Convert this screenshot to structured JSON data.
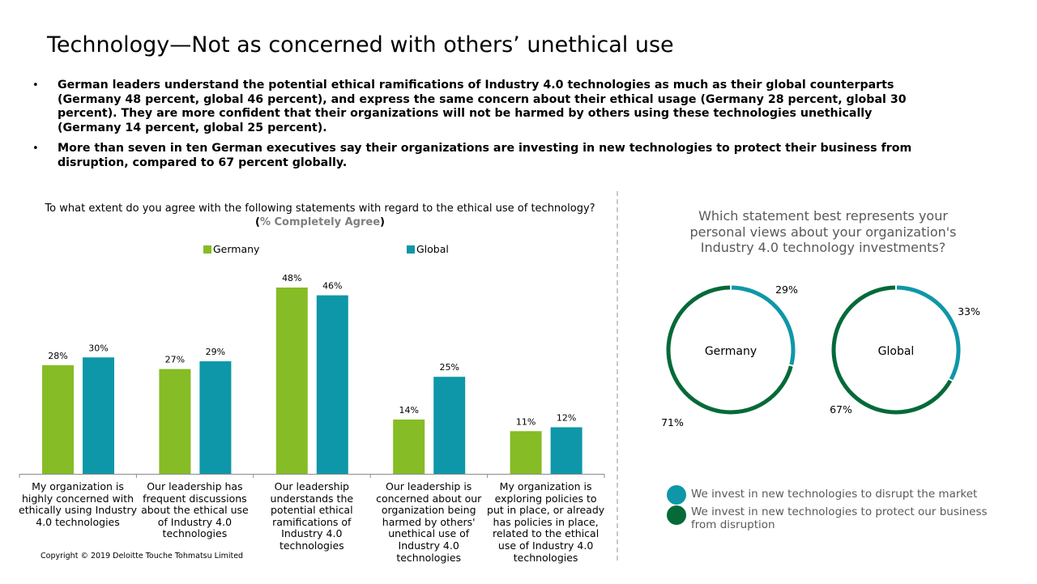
{
  "title": "Technology—Not as concerned with others’ unethical use",
  "bullets": [
    "German leaders understand the potential ethical ramifications of Industry 4.0 technologies as much as their global counterparts (Germany 48 percent, global 46 percent), and express the same concern about their ethical usage (Germany 28 percent, global 30 percent). They are more confident that their organizations will not be harmed by others using these technologies unethically (Germany 14 percent, global 25 percent).",
    "More than seven in ten German executives say their organizations are investing in new technologies to protect their business from disruption, compared to 67 percent globally."
  ],
  "bullet_glyph": "•",
  "left_panel": {
    "question": "To what extent do you agree with the following statements with regard to the ethical use of technology?",
    "subtitle_open": "(",
    "subtitle_emph": "% Completely Agree",
    "subtitle_close": ")"
  },
  "right_panel": {
    "question": "Which statement best represents your personal views about your organization's Industry 4.0 technology investments?",
    "key": [
      {
        "label": "We invest in new technologies to disrupt the market",
        "color": "#0e97a8"
      },
      {
        "label": "We invest in new technologies to protect our business from disruption",
        "color": "#046a38"
      }
    ]
  },
  "copyright": "Copyright © 2019 Deloitte Touche Tohmatsu Limited",
  "chart_data": [
    {
      "type": "bar",
      "title": "",
      "categories": [
        "My organization is highly concerned with ethically using Industry 4.0 technologies",
        "Our leadership has frequent discussions about the ethical use of Industry 4.0 technologies",
        "Our leadership understands the potential ethical ramifications of Industry 4.0 technologies",
        "Our leadership is concerned about our organization being harmed by others' unethical use of Industry 4.0 technologies",
        "My organization is exploring policies to put in place, or already has policies in place, related to the ethical use of Industry 4.0 technologies"
      ],
      "series": [
        {
          "name": "Germany",
          "color": "#86bc25",
          "values": [
            28,
            27,
            48,
            14,
            11
          ],
          "labels": [
            "28%",
            "27%",
            "48%",
            "14%",
            "11%"
          ]
        },
        {
          "name": "Global",
          "color": "#0e97a8",
          "values": [
            30,
            29,
            46,
            25,
            12
          ],
          "labels": [
            "30%",
            "29%",
            "46%",
            "25%",
            "12%"
          ]
        }
      ],
      "ylim": [
        0,
        50
      ],
      "grid": false,
      "legend": "top-center",
      "xlabel": "",
      "ylabel": ""
    },
    {
      "type": "pie",
      "style": "donut",
      "charts": [
        {
          "center_label": "Germany",
          "slices": [
            {
              "value": 29,
              "label": "29%",
              "color": "#0e97a8"
            },
            {
              "value": 71,
              "label": "71%",
              "color": "#046a38"
            }
          ]
        },
        {
          "center_label": "Global",
          "slices": [
            {
              "value": 33,
              "label": "33%",
              "color": "#0e97a8"
            },
            {
              "value": 67,
              "label": "67%",
              "color": "#046a38"
            }
          ]
        }
      ]
    }
  ]
}
